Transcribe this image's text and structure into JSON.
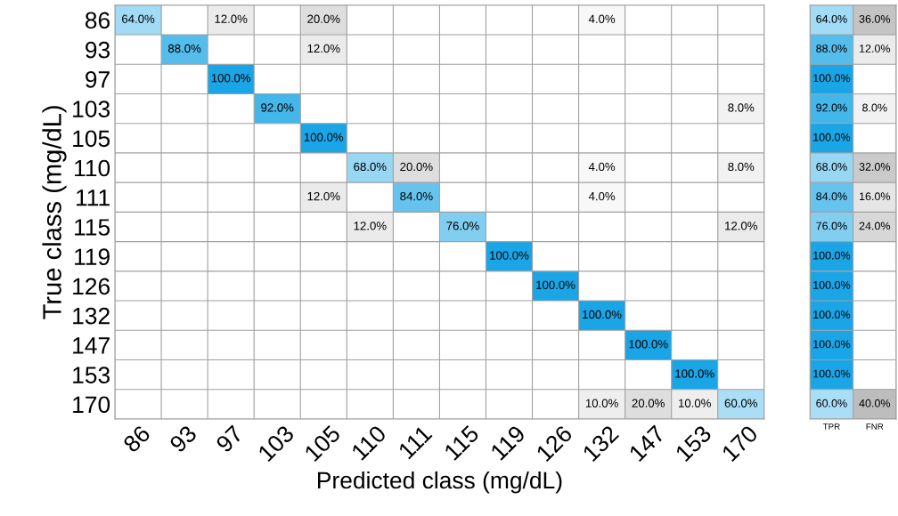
{
  "chart_data": [
    {
      "type": "heatmap",
      "xlabel": "Predicted class (mg/dL)",
      "ylabel": "True class (mg/dL)",
      "grid": true,
      "categories": [
        "86",
        "93",
        "97",
        "103",
        "105",
        "110",
        "111",
        "115",
        "119",
        "126",
        "132",
        "147",
        "153",
        "170"
      ],
      "y_categories": [
        "86",
        "93",
        "97",
        "103",
        "105",
        "110",
        "111",
        "115",
        "119",
        "126",
        "132",
        "147",
        "153",
        "170"
      ],
      "cells": [
        [
          64,
          null,
          12,
          null,
          20,
          null,
          null,
          null,
          null,
          null,
          4,
          null,
          null,
          null
        ],
        [
          null,
          88,
          null,
          null,
          12,
          null,
          null,
          null,
          null,
          null,
          null,
          null,
          null,
          null
        ],
        [
          null,
          null,
          100,
          null,
          null,
          null,
          null,
          null,
          null,
          null,
          null,
          null,
          null,
          null
        ],
        [
          null,
          null,
          null,
          92,
          null,
          null,
          null,
          null,
          null,
          null,
          null,
          null,
          null,
          8
        ],
        [
          null,
          null,
          null,
          null,
          100,
          null,
          null,
          null,
          null,
          null,
          null,
          null,
          null,
          null
        ],
        [
          null,
          null,
          null,
          null,
          null,
          68,
          20,
          null,
          null,
          null,
          4,
          null,
          null,
          8
        ],
        [
          null,
          null,
          null,
          null,
          12,
          null,
          84,
          null,
          null,
          null,
          4,
          null,
          null,
          null
        ],
        [
          null,
          null,
          null,
          null,
          null,
          12,
          null,
          76,
          null,
          null,
          null,
          null,
          null,
          12
        ],
        [
          null,
          null,
          null,
          null,
          null,
          null,
          null,
          null,
          100,
          null,
          null,
          null,
          null,
          null
        ],
        [
          null,
          null,
          null,
          null,
          null,
          null,
          null,
          null,
          null,
          100,
          null,
          null,
          null,
          null
        ],
        [
          null,
          null,
          null,
          null,
          null,
          null,
          null,
          null,
          null,
          null,
          100,
          null,
          null,
          null
        ],
        [
          null,
          null,
          null,
          null,
          null,
          null,
          null,
          null,
          null,
          null,
          null,
          100,
          null,
          null
        ],
        [
          null,
          null,
          null,
          null,
          null,
          null,
          null,
          null,
          null,
          null,
          null,
          null,
          100,
          null
        ],
        [
          null,
          null,
          null,
          null,
          null,
          null,
          null,
          null,
          null,
          null,
          10,
          20,
          10,
          60
        ]
      ],
      "cell_labels": [
        [
          "64.0%",
          null,
          "12.0%",
          null,
          "20.0%",
          null,
          null,
          null,
          null,
          null,
          "4.0%",
          null,
          null,
          null
        ],
        [
          null,
          "88.0%",
          null,
          null,
          "12.0%",
          null,
          null,
          null,
          null,
          null,
          null,
          null,
          null,
          null
        ],
        [
          null,
          null,
          "100.0%",
          null,
          null,
          null,
          null,
          null,
          null,
          null,
          null,
          null,
          null,
          null
        ],
        [
          null,
          null,
          null,
          "92.0%",
          null,
          null,
          null,
          null,
          null,
          null,
          null,
          null,
          null,
          "8.0%"
        ],
        [
          null,
          null,
          null,
          null,
          "100.0%",
          null,
          null,
          null,
          null,
          null,
          null,
          null,
          null,
          null
        ],
        [
          null,
          null,
          null,
          null,
          null,
          "68.0%",
          "20.0%",
          null,
          null,
          null,
          "4.0%",
          null,
          null,
          "8.0%"
        ],
        [
          null,
          null,
          null,
          null,
          "12.0%",
          null,
          "84.0%",
          null,
          null,
          null,
          "4.0%",
          null,
          null,
          null
        ],
        [
          null,
          null,
          null,
          null,
          null,
          "12.0%",
          null,
          "76.0%",
          null,
          null,
          null,
          null,
          null,
          "12.0%"
        ],
        [
          null,
          null,
          null,
          null,
          null,
          null,
          null,
          null,
          "100.0%",
          null,
          null,
          null,
          null,
          null
        ],
        [
          null,
          null,
          null,
          null,
          null,
          null,
          null,
          null,
          null,
          "100.0%",
          null,
          null,
          null,
          null
        ],
        [
          null,
          null,
          null,
          null,
          null,
          null,
          null,
          null,
          null,
          null,
          "100.0%",
          null,
          null,
          null
        ],
        [
          null,
          null,
          null,
          null,
          null,
          null,
          null,
          null,
          null,
          null,
          null,
          "100.0%",
          null,
          null
        ],
        [
          null,
          null,
          null,
          null,
          null,
          null,
          null,
          null,
          null,
          null,
          null,
          null,
          "100.0%",
          null
        ],
        [
          null,
          null,
          null,
          null,
          null,
          null,
          null,
          null,
          null,
          null,
          "10.0%",
          "20.0%",
          "10.0%",
          "60.0%"
        ]
      ]
    },
    {
      "type": "heatmap",
      "grid": true,
      "tick_labels": "x",
      "categories": [
        "TPR",
        "FNR"
      ],
      "y_categories": [
        "86",
        "93",
        "97",
        "103",
        "105",
        "110",
        "111",
        "115",
        "119",
        "126",
        "132",
        "147",
        "153",
        "170"
      ],
      "cells": [
        [
          64,
          36
        ],
        [
          88,
          12
        ],
        [
          100,
          null
        ],
        [
          92,
          8
        ],
        [
          100,
          null
        ],
        [
          68,
          32
        ],
        [
          84,
          16
        ],
        [
          76,
          24
        ],
        [
          100,
          null
        ],
        [
          100,
          null
        ],
        [
          100,
          null
        ],
        [
          100,
          null
        ],
        [
          100,
          null
        ],
        [
          60,
          40
        ]
      ],
      "cell_labels": [
        [
          "64.0%",
          "36.0%"
        ],
        [
          "88.0%",
          "12.0%"
        ],
        [
          "100.0%",
          null
        ],
        [
          "92.0%",
          "8.0%"
        ],
        [
          "100.0%",
          null
        ],
        [
          "68.0%",
          "32.0%"
        ],
        [
          "84.0%",
          "16.0%"
        ],
        [
          "76.0%",
          "24.0%"
        ],
        [
          "100.0%",
          null
        ],
        [
          "100.0%",
          null
        ],
        [
          "100.0%",
          null
        ],
        [
          "100.0%",
          null
        ],
        [
          "100.0%",
          null
        ],
        [
          "60.0%",
          "40.0%"
        ]
      ]
    }
  ]
}
